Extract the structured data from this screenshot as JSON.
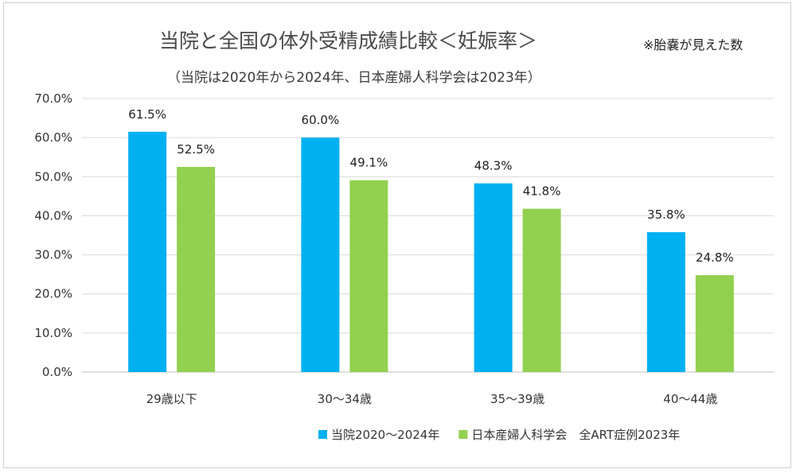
{
  "chart_data": {
    "type": "bar",
    "title": "当院と全国の体外受精成績比較＜妊娠率＞",
    "note": "※胎嚢が見えた数",
    "subtitle": "（当院は2020年から2024年、日本産婦人科学会は2023年）",
    "categories": [
      "29歳以下",
      "30～34歳",
      "35～39歳",
      "40～44歳"
    ],
    "series": [
      {
        "name": "当院2020～2024年",
        "color": "#00B0F0",
        "values": [
          61.5,
          60.0,
          48.3,
          35.8
        ],
        "labels": [
          "61.5%",
          "60.0%",
          "48.3%",
          "35.8%"
        ]
      },
      {
        "name": "日本産婦人科学会　全ART症例2023年",
        "color": "#92D050",
        "values": [
          52.5,
          49.1,
          41.8,
          24.8
        ],
        "labels": [
          "52.5%",
          "49.1%",
          "41.8%",
          "24.8%"
        ]
      }
    ],
    "yticks": [
      "0.0%",
      "10.0%",
      "20.0%",
      "30.0%",
      "40.0%",
      "50.0%",
      "60.0%",
      "70.0%"
    ],
    "ylim": [
      0,
      70
    ],
    "ystep": 10,
    "grid": true,
    "legend": "bottom-right",
    "xlabel": "",
    "ylabel": ""
  }
}
